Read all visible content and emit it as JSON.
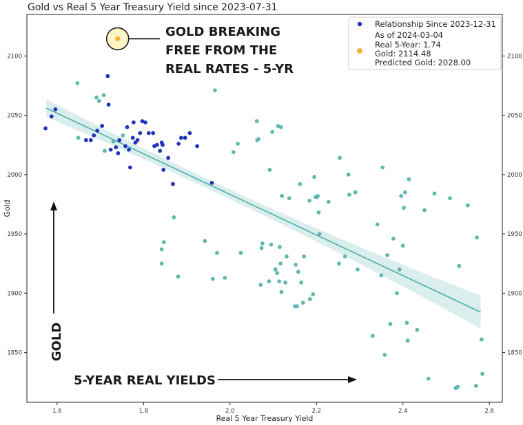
{
  "chart_data": {
    "type": "scatter",
    "title": "Gold vs Real 5 Year Treasury Yield since 2023-07-31",
    "xlabel": "Real 5 Year Treasury Yield",
    "ylabel": "Gold",
    "xlim": [
      1.53,
      2.63
    ],
    "ylim": [
      1808,
      2135
    ],
    "x_ticks": [
      "1.6",
      "1.8",
      "2.0",
      "2.2",
      "2.4",
      "2.6"
    ],
    "y_ticks": [
      "1850",
      "1900",
      "1950",
      "2000",
      "2050",
      "2100"
    ],
    "x_tick_values": [
      1.6,
      1.8,
      2.0,
      2.2,
      2.4,
      2.6
    ],
    "y_tick_values": [
      1850,
      1900,
      1950,
      2000,
      2050,
      2100
    ],
    "grid": false,
    "legend_position": "top-right",
    "legend": {
      "series_label": "Relationship Since 2023-12-31",
      "asof_line1": "As of 2024-03-04",
      "asof_line2": "Real 5-Year: 1.74",
      "asof_line3": "Gold: 2114.48",
      "asof_line4": "Predicted Gold: 2028.00"
    },
    "colors": {
      "recent": "#2233bb",
      "older": "#5fb8b0",
      "fit_line": "#4aaea6",
      "band": "#cfe8e8",
      "current": "#f2b33d"
    },
    "regression": {
      "x": [
        1.575,
        2.58
      ],
      "y": [
        2056,
        1884
      ],
      "band_width_ends": 14,
      "band_width_mid": 4
    },
    "current_point": {
      "x": 1.74,
      "y": 2114.48,
      "predicted": 2028.0
    },
    "series": [
      {
        "name": "Relationship Since 2023-12-31",
        "role": "recent",
        "points": [
          [
            1.573,
            2039
          ],
          [
            1.587,
            2049
          ],
          [
            1.596,
            2055
          ],
          [
            1.667,
            2029
          ],
          [
            1.678,
            2029
          ],
          [
            1.685,
            2033
          ],
          [
            1.693,
            2037
          ],
          [
            1.704,
            2041
          ],
          [
            1.717,
            2083
          ],
          [
            1.719,
            2059
          ],
          [
            1.724,
            2021
          ],
          [
            1.736,
            2023
          ],
          [
            1.741,
            2018
          ],
          [
            1.744,
            2029
          ],
          [
            1.758,
            2024
          ],
          [
            1.762,
            2040
          ],
          [
            1.766,
            2021
          ],
          [
            1.769,
            2006
          ],
          [
            1.775,
            2031
          ],
          [
            1.777,
            2044
          ],
          [
            1.781,
            2027
          ],
          [
            1.786,
            2029
          ],
          [
            1.792,
            2035
          ],
          [
            1.797,
            2045
          ],
          [
            1.804,
            2044
          ],
          [
            1.812,
            2035
          ],
          [
            1.822,
            2035
          ],
          [
            1.825,
            2024
          ],
          [
            1.831,
            2025
          ],
          [
            1.838,
            2020
          ],
          [
            1.842,
            2027
          ],
          [
            1.844,
            2025
          ],
          [
            1.846,
            2004
          ],
          [
            1.857,
            2014
          ],
          [
            1.868,
            1992
          ],
          [
            1.881,
            2026
          ],
          [
            1.887,
            2031
          ],
          [
            1.896,
            2031
          ],
          [
            1.907,
            2035
          ],
          [
            1.924,
            2024
          ],
          [
            1.958,
            1993
          ]
        ]
      },
      {
        "name": "",
        "role": "older",
        "points": [
          [
            1.647,
            2077
          ],
          [
            1.649,
            2031
          ],
          [
            1.691,
            2065
          ],
          [
            1.697,
            2062
          ],
          [
            1.708,
            2067
          ],
          [
            1.71,
            2020
          ],
          [
            1.73,
            2028
          ],
          [
            1.752,
            2033
          ],
          [
            1.842,
            1925
          ],
          [
            1.842,
            1937
          ],
          [
            1.847,
            1943
          ],
          [
            1.87,
            1964
          ],
          [
            1.88,
            1914
          ],
          [
            1.942,
            1944
          ],
          [
            1.96,
            1912
          ],
          [
            1.965,
            2071
          ],
          [
            1.97,
            1934
          ],
          [
            1.988,
            1913
          ],
          [
            2.008,
            2019
          ],
          [
            2.018,
            2026
          ],
          [
            2.025,
            1934
          ],
          [
            2.062,
            2045
          ],
          [
            2.063,
            2029
          ],
          [
            2.066,
            2030
          ],
          [
            2.071,
            1907
          ],
          [
            2.073,
            1938
          ],
          [
            2.075,
            1942
          ],
          [
            2.09,
            1910
          ],
          [
            2.092,
            2004
          ],
          [
            2.095,
            1941
          ],
          [
            2.098,
            2036
          ],
          [
            2.105,
            1920
          ],
          [
            2.109,
            1917
          ],
          [
            2.111,
            2041
          ],
          [
            2.114,
            1910
          ],
          [
            2.115,
            1939
          ],
          [
            2.117,
            1925
          ],
          [
            2.118,
            2040
          ],
          [
            2.119,
            1901
          ],
          [
            2.12,
            1982
          ],
          [
            2.128,
            1909
          ],
          [
            2.131,
            1931
          ],
          [
            2.137,
            1980
          ],
          [
            2.15,
            1889
          ],
          [
            2.152,
            1924
          ],
          [
            2.155,
            1889
          ],
          [
            2.158,
            1918
          ],
          [
            2.162,
            1992
          ],
          [
            2.165,
            1909
          ],
          [
            2.169,
            1892
          ],
          [
            2.171,
            1931
          ],
          [
            2.184,
            1978
          ],
          [
            2.185,
            1895
          ],
          [
            2.192,
            1899
          ],
          [
            2.195,
            1998
          ],
          [
            2.198,
            1981
          ],
          [
            2.201,
            1981
          ],
          [
            2.203,
            1982
          ],
          [
            2.205,
            1968
          ],
          [
            2.207,
            1950
          ],
          [
            2.228,
            1977
          ],
          [
            2.252,
            1925
          ],
          [
            2.254,
            2014
          ],
          [
            2.266,
            1931
          ],
          [
            2.274,
            2000
          ],
          [
            2.276,
            1983
          ],
          [
            2.29,
            1985
          ],
          [
            2.295,
            1920
          ],
          [
            2.33,
            1864
          ],
          [
            2.341,
            1958
          ],
          [
            2.35,
            1915
          ],
          [
            2.353,
            2006
          ],
          [
            2.358,
            1848
          ],
          [
            2.364,
            1932
          ],
          [
            2.371,
            1874
          ],
          [
            2.378,
            1946
          ],
          [
            2.386,
            1900
          ],
          [
            2.392,
            1920
          ],
          [
            2.396,
            1982
          ],
          [
            2.4,
            1940
          ],
          [
            2.402,
            1972
          ],
          [
            2.405,
            1985
          ],
          [
            2.409,
            1875
          ],
          [
            2.411,
            1860
          ],
          [
            2.414,
            1996
          ],
          [
            2.433,
            1869
          ],
          [
            2.45,
            1970
          ],
          [
            2.459,
            1828
          ],
          [
            2.473,
            1984
          ],
          [
            2.509,
            1980
          ],
          [
            2.522,
            1820
          ],
          [
            2.527,
            1821
          ],
          [
            2.53,
            1923
          ],
          [
            2.55,
            1974
          ],
          [
            2.569,
            1822
          ],
          [
            2.571,
            1947
          ],
          [
            2.582,
            1861
          ],
          [
            2.584,
            1832
          ]
        ]
      }
    ],
    "annotations": {
      "callout_line1": "GOLD BREAKING",
      "callout_line2": "FREE FROM THE",
      "callout_line3": "REAL RATES - 5-YR",
      "gold_label": "GOLD",
      "yields_label": "5-YEAR REAL YIELDS"
    }
  }
}
